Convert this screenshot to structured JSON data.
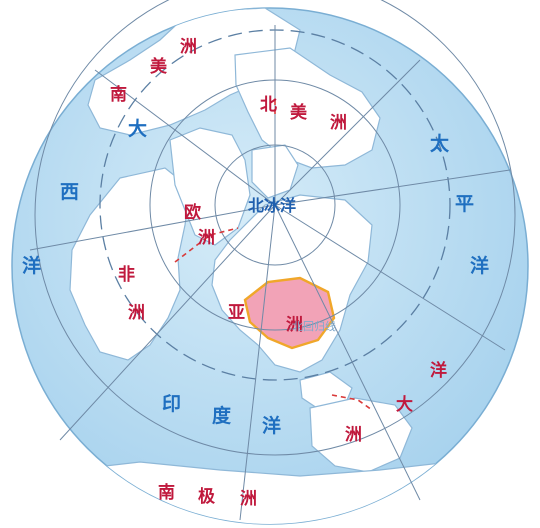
{
  "map": {
    "labels": {
      "arctic_ocean": "北冰洋",
      "atlantic": [
        "大",
        "西",
        "洋"
      ],
      "pacific": [
        "太",
        "平",
        "洋"
      ],
      "indian_ocean": [
        "印",
        "度",
        "洋"
      ],
      "north_america": [
        "北",
        "美",
        "洲"
      ],
      "south_america": [
        "南",
        "美",
        "洲"
      ],
      "europe": [
        "欧",
        "洲"
      ],
      "africa": [
        "非",
        "洲"
      ],
      "asia": [
        "亚",
        "洲"
      ],
      "oceania": [
        "大",
        "洋",
        "洲"
      ],
      "antarctica": [
        "南",
        "极",
        "洲"
      ],
      "china_note": "北回归线"
    },
    "colors": {
      "ocean": "#b9ddf2",
      "land": "#ffffff",
      "china": "#f2a3b7",
      "ocean_label": "#1f6fc0",
      "continent_label": "#c0193d"
    }
  }
}
